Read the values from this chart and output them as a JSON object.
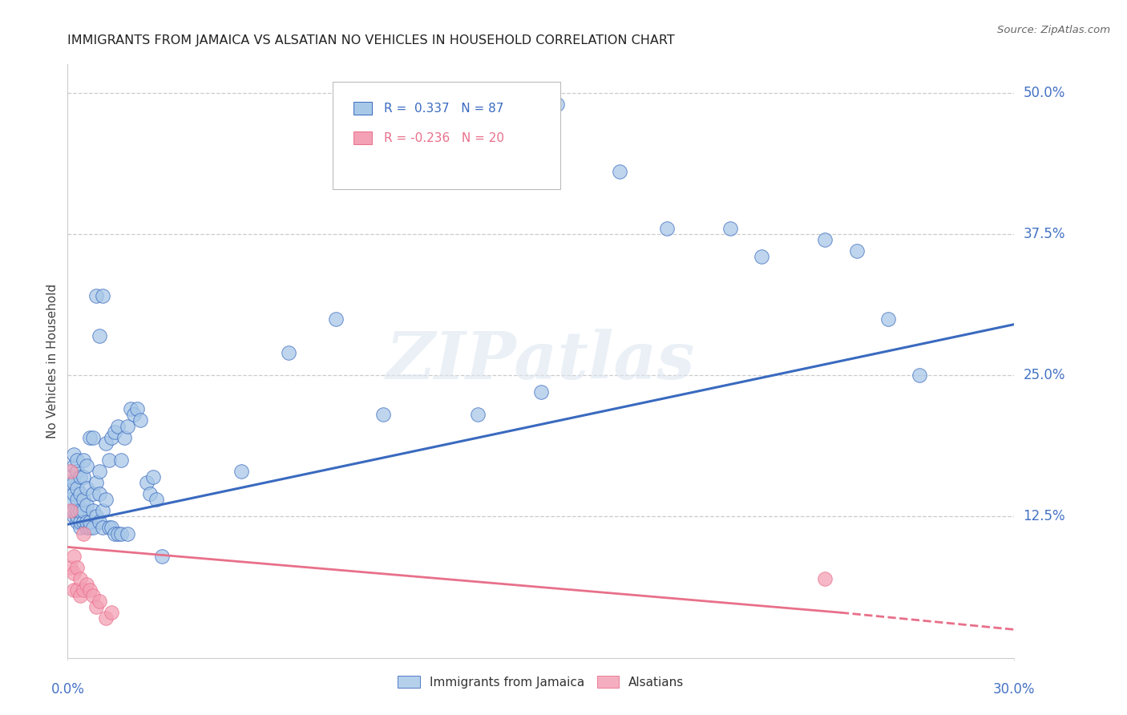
{
  "title": "IMMIGRANTS FROM JAMAICA VS ALSATIAN NO VEHICLES IN HOUSEHOLD CORRELATION CHART",
  "source": "Source: ZipAtlas.com",
  "ylabel": "No Vehicles in Household",
  "right_ytick_labels": [
    "50.0%",
    "37.5%",
    "25.0%",
    "12.5%"
  ],
  "right_ytick_vals": [
    0.5,
    0.375,
    0.25,
    0.125
  ],
  "xlim": [
    0.0,
    0.3
  ],
  "ylim": [
    0.0,
    0.525
  ],
  "color_blue": "#a8c8e8",
  "color_pink": "#f4a0b5",
  "trendline_blue": "#3a6abf",
  "trendline_pink": "#e8708a",
  "background": "#ffffff",
  "grid_color": "#cccccc",
  "spine_color": "#cccccc",
  "label_color": "#4472c4",
  "blue_x": [
    0.001,
    0.001,
    0.001,
    0.002,
    0.002,
    0.002,
    0.002,
    0.002,
    0.002,
    0.003,
    0.003,
    0.003,
    0.003,
    0.003,
    0.003,
    0.003,
    0.004,
    0.004,
    0.004,
    0.004,
    0.004,
    0.005,
    0.005,
    0.005,
    0.005,
    0.005,
    0.006,
    0.006,
    0.006,
    0.006,
    0.006,
    0.007,
    0.007,
    0.007,
    0.008,
    0.008,
    0.008,
    0.008,
    0.009,
    0.009,
    0.009,
    0.01,
    0.01,
    0.01,
    0.01,
    0.011,
    0.011,
    0.011,
    0.012,
    0.012,
    0.013,
    0.013,
    0.014,
    0.014,
    0.015,
    0.015,
    0.016,
    0.016,
    0.017,
    0.017,
    0.018,
    0.019,
    0.019,
    0.02,
    0.021,
    0.022,
    0.023,
    0.025,
    0.026,
    0.027,
    0.028,
    0.03,
    0.055,
    0.07,
    0.085,
    0.1,
    0.13,
    0.15,
    0.19,
    0.21,
    0.22,
    0.24,
    0.25,
    0.26,
    0.155,
    0.175,
    0.27
  ],
  "blue_y": [
    0.14,
    0.155,
    0.16,
    0.125,
    0.13,
    0.145,
    0.155,
    0.17,
    0.18,
    0.12,
    0.125,
    0.13,
    0.14,
    0.15,
    0.165,
    0.175,
    0.115,
    0.12,
    0.13,
    0.145,
    0.16,
    0.12,
    0.13,
    0.14,
    0.16,
    0.175,
    0.115,
    0.12,
    0.135,
    0.15,
    0.17,
    0.115,
    0.12,
    0.195,
    0.115,
    0.13,
    0.145,
    0.195,
    0.125,
    0.155,
    0.32,
    0.12,
    0.145,
    0.165,
    0.285,
    0.115,
    0.13,
    0.32,
    0.14,
    0.19,
    0.115,
    0.175,
    0.115,
    0.195,
    0.11,
    0.2,
    0.11,
    0.205,
    0.11,
    0.175,
    0.195,
    0.11,
    0.205,
    0.22,
    0.215,
    0.22,
    0.21,
    0.155,
    0.145,
    0.16,
    0.14,
    0.09,
    0.165,
    0.27,
    0.3,
    0.215,
    0.215,
    0.235,
    0.38,
    0.38,
    0.355,
    0.37,
    0.36,
    0.3,
    0.49,
    0.43,
    0.25
  ],
  "pink_x": [
    0.001,
    0.001,
    0.001,
    0.002,
    0.002,
    0.002,
    0.003,
    0.003,
    0.004,
    0.004,
    0.005,
    0.005,
    0.006,
    0.007,
    0.008,
    0.009,
    0.01,
    0.012,
    0.014,
    0.24
  ],
  "pink_y": [
    0.165,
    0.13,
    0.08,
    0.075,
    0.06,
    0.09,
    0.06,
    0.08,
    0.055,
    0.07,
    0.06,
    0.11,
    0.065,
    0.06,
    0.055,
    0.045,
    0.05,
    0.035,
    0.04,
    0.07
  ],
  "blue_trend_x0": 0.0,
  "blue_trend_y0": 0.118,
  "blue_trend_x1": 0.3,
  "blue_trend_y1": 0.295,
  "pink_trend_x0": 0.0,
  "pink_trend_y0": 0.098,
  "pink_trend_x1_solid": 0.245,
  "pink_trend_y1_solid": 0.04,
  "pink_trend_x1_dash": 0.3,
  "pink_trend_y1_dash": 0.025
}
